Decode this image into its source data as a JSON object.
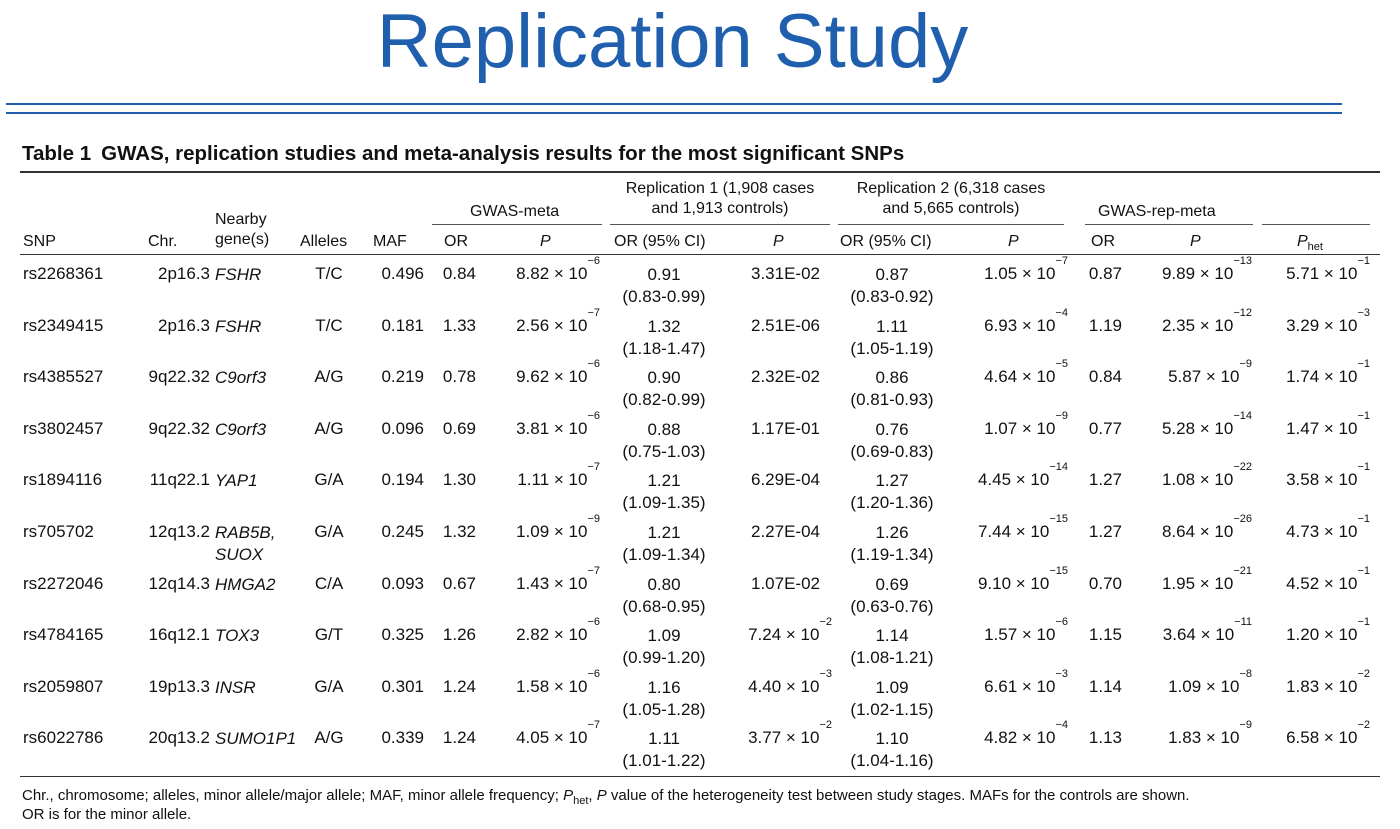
{
  "slide": {
    "title": "Replication Study"
  },
  "table": {
    "caption_number": "Table 1",
    "caption_text": "GWAS, replication studies and meta-analysis results for the most significant SNPs",
    "groups": {
      "gwas_meta": "GWAS-meta",
      "rep1_line1": "Replication 1 (1,908 cases",
      "rep1_line2": "and 1,913 controls)",
      "rep2_line1": "Replication 2 (6,318 cases",
      "rep2_line2": "and 5,665 controls)",
      "gwas_rep_meta": "GWAS-rep-meta"
    },
    "headers": {
      "snp": "SNP",
      "chr": "Chr.",
      "nearby_line1": "Nearby",
      "nearby_line2": "gene(s)",
      "alleles": "Alleles",
      "maf": "MAF",
      "or": "OR",
      "p": "P",
      "or_ci": "OR (95% CI)",
      "p_het": "P",
      "p_het_sub": "het"
    },
    "rows": [
      {
        "snp": "rs2268361",
        "chr": "2p16.3",
        "gene": "FSHR",
        "gene2": "",
        "alleles": "T/C",
        "maf": "0.496",
        "gm_or": "0.84",
        "gm_p": "8.82 × 10",
        "gm_p_exp": "−6",
        "r1_or": "0.91",
        "r1_ci": "(0.83-0.99)",
        "r1_p": "3.31E-02",
        "r1_p_exp": "",
        "r2_or": "0.87",
        "r2_ci": "(0.83-0.92)",
        "r2_p": "1.05 × 10",
        "r2_p_exp": "−7",
        "rm_or": "0.87",
        "rm_p": "9.89 × 10",
        "rm_p_exp": "−13",
        "het": "5.71 × 10",
        "het_exp": "−1"
      },
      {
        "snp": "rs2349415",
        "chr": "2p16.3",
        "gene": "FSHR",
        "gene2": "",
        "alleles": "T/C",
        "maf": "0.181",
        "gm_or": "1.33",
        "gm_p": "2.56 × 10",
        "gm_p_exp": "−7",
        "r1_or": "1.32",
        "r1_ci": "(1.18-1.47)",
        "r1_p": "2.51E-06",
        "r1_p_exp": "",
        "r2_or": "1.11",
        "r2_ci": "(1.05-1.19)",
        "r2_p": "6.93 × 10",
        "r2_p_exp": "−4",
        "rm_or": "1.19",
        "rm_p": "2.35 × 10",
        "rm_p_exp": "−12",
        "het": "3.29 × 10",
        "het_exp": "−3"
      },
      {
        "snp": "rs4385527",
        "chr": "9q22.32",
        "gene": "C9orf3",
        "gene2": "",
        "alleles": "A/G",
        "maf": "0.219",
        "gm_or": "0.78",
        "gm_p": "9.62 × 10",
        "gm_p_exp": "−6",
        "r1_or": "0.90",
        "r1_ci": "(0.82-0.99)",
        "r1_p": "2.32E-02",
        "r1_p_exp": "",
        "r2_or": "0.86",
        "r2_ci": "(0.81-0.93)",
        "r2_p": "4.64 × 10",
        "r2_p_exp": "−5",
        "rm_or": "0.84",
        "rm_p": "5.87 × 10",
        "rm_p_exp": "−9",
        "het": "1.74 × 10",
        "het_exp": "−1"
      },
      {
        "snp": "rs3802457",
        "chr": "9q22.32",
        "gene": "C9orf3",
        "gene2": "",
        "alleles": "A/G",
        "maf": "0.096",
        "gm_or": "0.69",
        "gm_p": "3.81 × 10",
        "gm_p_exp": "−6",
        "r1_or": "0.88",
        "r1_ci": "(0.75-1.03)",
        "r1_p": "1.17E-01",
        "r1_p_exp": "",
        "r2_or": "0.76",
        "r2_ci": "(0.69-0.83)",
        "r2_p": "1.07 × 10",
        "r2_p_exp": "−9",
        "rm_or": "0.77",
        "rm_p": "5.28 × 10",
        "rm_p_exp": "−14",
        "het": "1.47 × 10",
        "het_exp": "−1"
      },
      {
        "snp": "rs1894116",
        "chr": "11q22.1",
        "gene": "YAP1",
        "gene2": "",
        "alleles": "G/A",
        "maf": "0.194",
        "gm_or": "1.30",
        "gm_p": "1.11 × 10",
        "gm_p_exp": "−7",
        "r1_or": "1.21",
        "r1_ci": "(1.09-1.35)",
        "r1_p": "6.29E-04",
        "r1_p_exp": "",
        "r2_or": "1.27",
        "r2_ci": "(1.20-1.36)",
        "r2_p": "4.45 × 10",
        "r2_p_exp": "−14",
        "rm_or": "1.27",
        "rm_p": "1.08 × 10",
        "rm_p_exp": "−22",
        "het": "3.58 × 10",
        "het_exp": "−1"
      },
      {
        "snp": "rs705702",
        "chr": "12q13.2",
        "gene": "RAB5B,",
        "gene2": "SUOX",
        "alleles": "G/A",
        "maf": "0.245",
        "gm_or": "1.32",
        "gm_p": "1.09 × 10",
        "gm_p_exp": "−9",
        "r1_or": "1.21",
        "r1_ci": "(1.09-1.34)",
        "r1_p": "2.27E-04",
        "r1_p_exp": "",
        "r2_or": "1.26",
        "r2_ci": "(1.19-1.34)",
        "r2_p": "7.44 × 10",
        "r2_p_exp": "−15",
        "rm_or": "1.27",
        "rm_p": "8.64 × 10",
        "rm_p_exp": "−26",
        "het": "4.73 × 10",
        "het_exp": "−1"
      },
      {
        "snp": "rs2272046",
        "chr": "12q14.3",
        "gene": "HMGA2",
        "gene2": "",
        "alleles": "C/A",
        "maf": "0.093",
        "gm_or": "0.67",
        "gm_p": "1.43 × 10",
        "gm_p_exp": "−7",
        "r1_or": "0.80",
        "r1_ci": "(0.68-0.95)",
        "r1_p": "1.07E-02",
        "r1_p_exp": "",
        "r2_or": "0.69",
        "r2_ci": "(0.63-0.76)",
        "r2_p": "9.10 × 10",
        "r2_p_exp": "−15",
        "rm_or": "0.70",
        "rm_p": "1.95 × 10",
        "rm_p_exp": "−21",
        "het": "4.52 × 10",
        "het_exp": "−1"
      },
      {
        "snp": "rs4784165",
        "chr": "16q12.1",
        "gene": "TOX3",
        "gene2": "",
        "alleles": "G/T",
        "maf": "0.325",
        "gm_or": "1.26",
        "gm_p": "2.82 × 10",
        "gm_p_exp": "−6",
        "r1_or": "1.09",
        "r1_ci": "(0.99-1.20)",
        "r1_p": "7.24 × 10",
        "r1_p_exp": "−2",
        "r2_or": "1.14",
        "r2_ci": "(1.08-1.21)",
        "r2_p": "1.57 × 10",
        "r2_p_exp": "−6",
        "rm_or": "1.15",
        "rm_p": "3.64 × 10",
        "rm_p_exp": "−11",
        "het": "1.20 × 10",
        "het_exp": "−1"
      },
      {
        "snp": "rs2059807",
        "chr": "19p13.3",
        "gene": "INSR",
        "gene2": "",
        "alleles": "G/A",
        "maf": "0.301",
        "gm_or": "1.24",
        "gm_p": "1.58 × 10",
        "gm_p_exp": "−6",
        "r1_or": "1.16",
        "r1_ci": "(1.05-1.28)",
        "r1_p": "4.40 × 10",
        "r1_p_exp": "−3",
        "r2_or": "1.09",
        "r2_ci": "(1.02-1.15)",
        "r2_p": "6.61 × 10",
        "r2_p_exp": "−3",
        "rm_or": "1.14",
        "rm_p": "1.09 × 10",
        "rm_p_exp": "−8",
        "het": "1.83 × 10",
        "het_exp": "−2"
      },
      {
        "snp": "rs6022786",
        "chr": "20q13.2",
        "gene": "SUMO1P1",
        "gene2": "",
        "alleles": "A/G",
        "maf": "0.339",
        "gm_or": "1.24",
        "gm_p": "4.05 × 10",
        "gm_p_exp": "−7",
        "r1_or": "1.11",
        "r1_ci": "(1.01-1.22)",
        "r1_p": "3.77 × 10",
        "r1_p_exp": "−2",
        "r2_or": "1.10",
        "r2_ci": "(1.04-1.16)",
        "r2_p": "4.82 × 10",
        "r2_p_exp": "−4",
        "rm_or": "1.13",
        "rm_p": "1.83 × 10",
        "rm_p_exp": "−9",
        "het": "6.58 × 10",
        "het_exp": "−2"
      }
    ],
    "footnote": {
      "part1": "Chr., chromosome; alleles, minor allele/major allele; MAF, minor allele frequency; ",
      "p_het": "P",
      "p_het_sub": "het",
      "part2": ", ",
      "p": "P",
      "part3": " value of the heterogeneity test between study stages. MAFs for the controls are shown.",
      "line2": "OR is for the minor allele."
    }
  }
}
